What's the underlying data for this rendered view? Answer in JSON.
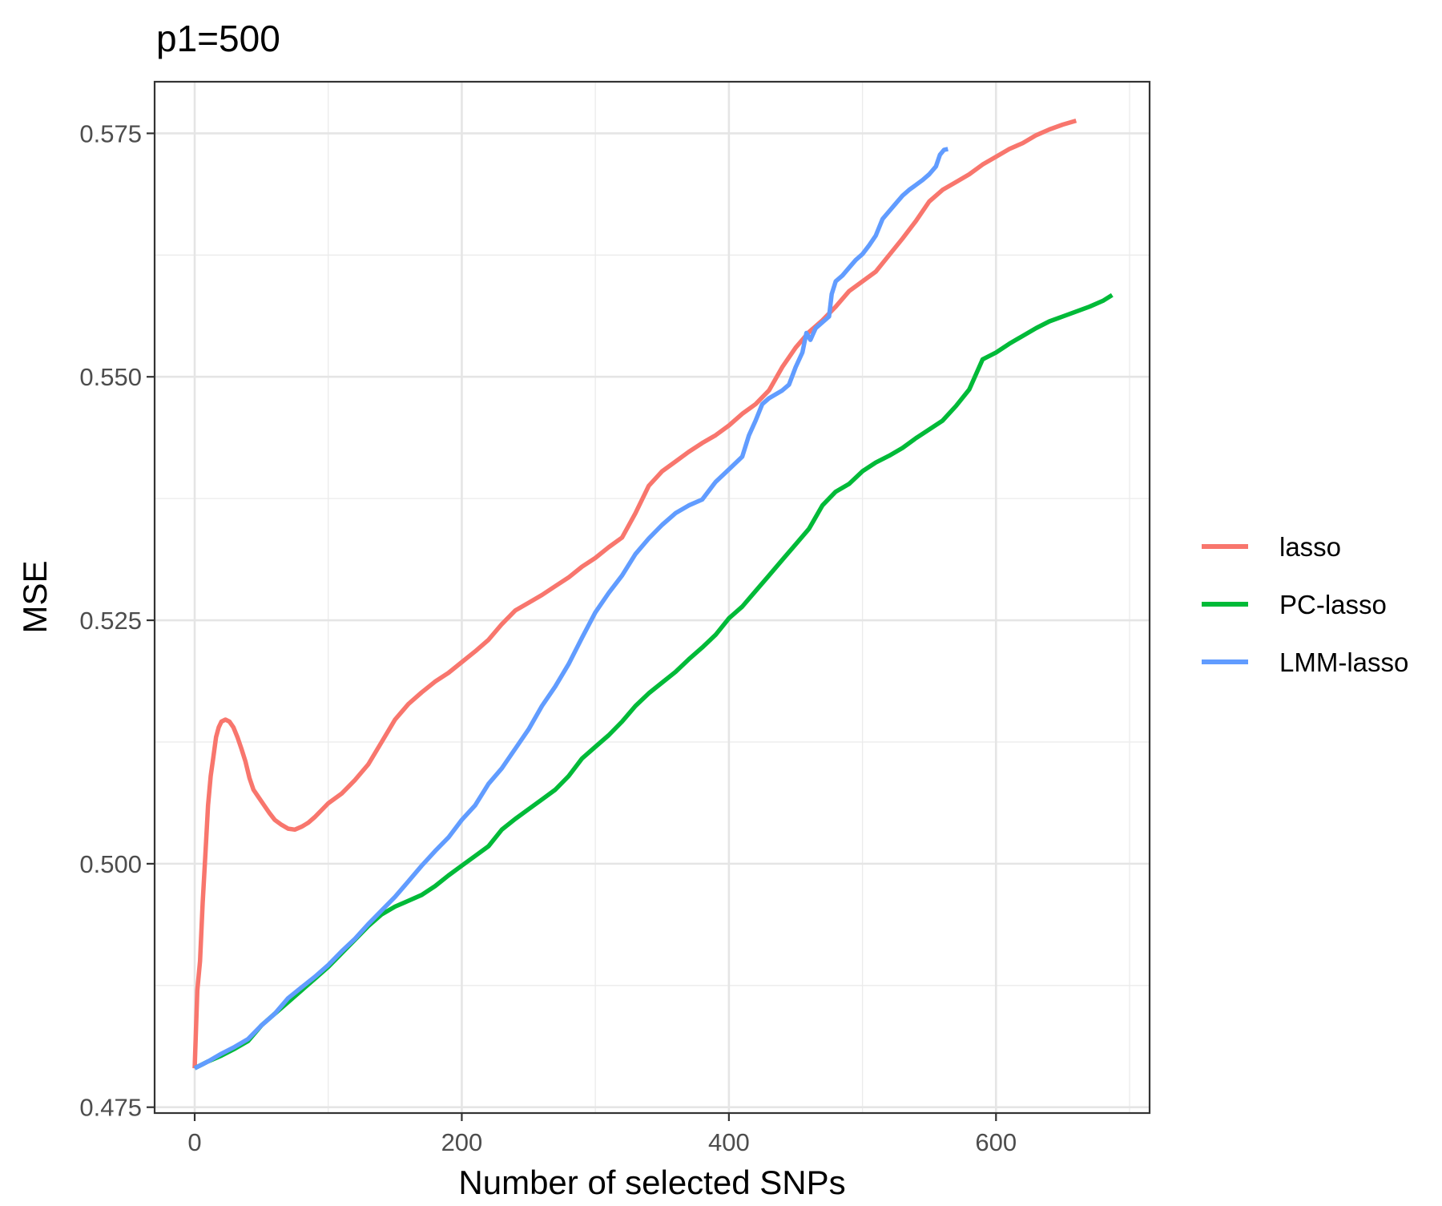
{
  "chart_data": {
    "type": "line",
    "title": "p1=500",
    "xlabel": "Number of selected SNPs",
    "ylabel": "MSE",
    "xlim": [
      -30,
      715
    ],
    "ylim": [
      0.4744,
      0.5803
    ],
    "x_ticks": [
      0,
      200,
      400,
      600
    ],
    "x_tick_labels": [
      "0",
      "200",
      "400",
      "600"
    ],
    "y_ticks": [
      0.475,
      0.5,
      0.525,
      0.55,
      0.575
    ],
    "y_tick_labels": [
      "0.475",
      "0.500",
      "0.525",
      "0.550",
      "0.575"
    ],
    "x_minor": [
      100,
      300,
      500,
      700
    ],
    "y_minor": [
      0.4875,
      0.5125,
      0.5375,
      0.5625
    ],
    "grid": true,
    "theme": "bw",
    "legend_position": "right",
    "series": [
      {
        "name": "lasso",
        "color": "#F8766D",
        "points": [
          [
            0,
            0.479
          ],
          [
            2,
            0.487
          ],
          [
            4,
            0.49
          ],
          [
            6,
            0.496
          ],
          [
            8,
            0.501
          ],
          [
            10,
            0.506
          ],
          [
            12,
            0.509
          ],
          [
            14,
            0.511
          ],
          [
            16,
            0.513
          ],
          [
            18,
            0.514
          ],
          [
            20,
            0.5146
          ],
          [
            23,
            0.5148
          ],
          [
            26,
            0.5146
          ],
          [
            29,
            0.514
          ],
          [
            32,
            0.513
          ],
          [
            35,
            0.5118
          ],
          [
            38,
            0.5105
          ],
          [
            41,
            0.5088
          ],
          [
            44,
            0.5076
          ],
          [
            48,
            0.5068
          ],
          [
            52,
            0.506
          ],
          [
            56,
            0.5052
          ],
          [
            60,
            0.5045
          ],
          [
            65,
            0.504
          ],
          [
            70,
            0.5036
          ],
          [
            75,
            0.5035
          ],
          [
            80,
            0.5038
          ],
          [
            85,
            0.5042
          ],
          [
            90,
            0.5048
          ],
          [
            95,
            0.5055
          ],
          [
            100,
            0.5062
          ],
          [
            110,
            0.5072
          ],
          [
            120,
            0.5086
          ],
          [
            130,
            0.5102
          ],
          [
            140,
            0.5125
          ],
          [
            150,
            0.5148
          ],
          [
            160,
            0.5164
          ],
          [
            170,
            0.5176
          ],
          [
            180,
            0.5187
          ],
          [
            190,
            0.5196
          ],
          [
            200,
            0.5207
          ],
          [
            210,
            0.5218
          ],
          [
            220,
            0.523
          ],
          [
            230,
            0.5246
          ],
          [
            240,
            0.526
          ],
          [
            250,
            0.5268
          ],
          [
            260,
            0.5276
          ],
          [
            270,
            0.5285
          ],
          [
            280,
            0.5294
          ],
          [
            290,
            0.5305
          ],
          [
            300,
            0.5314
          ],
          [
            310,
            0.5325
          ],
          [
            320,
            0.5335
          ],
          [
            330,
            0.536
          ],
          [
            340,
            0.5388
          ],
          [
            350,
            0.5403
          ],
          [
            360,
            0.5413
          ],
          [
            370,
            0.5423
          ],
          [
            380,
            0.5432
          ],
          [
            390,
            0.544
          ],
          [
            400,
            0.545
          ],
          [
            410,
            0.5462
          ],
          [
            420,
            0.5472
          ],
          [
            430,
            0.5486
          ],
          [
            440,
            0.551
          ],
          [
            450,
            0.553
          ],
          [
            460,
            0.5546
          ],
          [
            470,
            0.5558
          ],
          [
            480,
            0.5572
          ],
          [
            490,
            0.5588
          ],
          [
            500,
            0.5598
          ],
          [
            510,
            0.5608
          ],
          [
            520,
            0.5625
          ],
          [
            530,
            0.5642
          ],
          [
            540,
            0.566
          ],
          [
            550,
            0.568
          ],
          [
            560,
            0.5692
          ],
          [
            570,
            0.57
          ],
          [
            580,
            0.5708
          ],
          [
            590,
            0.5718
          ],
          [
            600,
            0.5726
          ],
          [
            610,
            0.5734
          ],
          [
            620,
            0.574
          ],
          [
            630,
            0.5748
          ],
          [
            640,
            0.5754
          ],
          [
            650,
            0.5759
          ],
          [
            660,
            0.5763
          ]
        ]
      },
      {
        "name": "PC-lasso",
        "color": "#00BA38",
        "points": [
          [
            0,
            0.479
          ],
          [
            10,
            0.4797
          ],
          [
            20,
            0.4803
          ],
          [
            30,
            0.481
          ],
          [
            40,
            0.4818
          ],
          [
            50,
            0.4834
          ],
          [
            60,
            0.4846
          ],
          [
            70,
            0.4858
          ],
          [
            80,
            0.487
          ],
          [
            90,
            0.4882
          ],
          [
            100,
            0.4894
          ],
          [
            110,
            0.4908
          ],
          [
            120,
            0.4922
          ],
          [
            130,
            0.4936
          ],
          [
            140,
            0.4948
          ],
          [
            150,
            0.4956
          ],
          [
            160,
            0.4962
          ],
          [
            170,
            0.4968
          ],
          [
            180,
            0.4977
          ],
          [
            190,
            0.4988
          ],
          [
            200,
            0.4998
          ],
          [
            210,
            0.5008
          ],
          [
            220,
            0.5018
          ],
          [
            230,
            0.5035
          ],
          [
            240,
            0.5046
          ],
          [
            250,
            0.5056
          ],
          [
            260,
            0.5066
          ],
          [
            270,
            0.5076
          ],
          [
            280,
            0.509
          ],
          [
            290,
            0.5108
          ],
          [
            300,
            0.512
          ],
          [
            310,
            0.5132
          ],
          [
            320,
            0.5146
          ],
          [
            330,
            0.5162
          ],
          [
            340,
            0.5175
          ],
          [
            350,
            0.5186
          ],
          [
            360,
            0.5197
          ],
          [
            370,
            0.521
          ],
          [
            380,
            0.5222
          ],
          [
            390,
            0.5235
          ],
          [
            400,
            0.5252
          ],
          [
            410,
            0.5264
          ],
          [
            420,
            0.528
          ],
          [
            430,
            0.5296
          ],
          [
            440,
            0.5312
          ],
          [
            450,
            0.5328
          ],
          [
            460,
            0.5344
          ],
          [
            470,
            0.5368
          ],
          [
            480,
            0.5382
          ],
          [
            490,
            0.539
          ],
          [
            500,
            0.5403
          ],
          [
            510,
            0.5412
          ],
          [
            520,
            0.5419
          ],
          [
            530,
            0.5427
          ],
          [
            540,
            0.5437
          ],
          [
            550,
            0.5446
          ],
          [
            560,
            0.5455
          ],
          [
            570,
            0.547
          ],
          [
            580,
            0.5487
          ],
          [
            590,
            0.5518
          ],
          [
            600,
            0.5525
          ],
          [
            610,
            0.5534
          ],
          [
            620,
            0.5542
          ],
          [
            630,
            0.555
          ],
          [
            640,
            0.5557
          ],
          [
            650,
            0.5562
          ],
          [
            660,
            0.5567
          ],
          [
            670,
            0.5572
          ],
          [
            680,
            0.5578
          ],
          [
            687,
            0.5584
          ]
        ]
      },
      {
        "name": "LMM-lasso",
        "color": "#619CFF",
        "points": [
          [
            0,
            0.479
          ],
          [
            10,
            0.4797
          ],
          [
            20,
            0.4805
          ],
          [
            30,
            0.4812
          ],
          [
            40,
            0.482
          ],
          [
            50,
            0.4834
          ],
          [
            60,
            0.4846
          ],
          [
            70,
            0.4862
          ],
          [
            80,
            0.4873
          ],
          [
            90,
            0.4884
          ],
          [
            100,
            0.4896
          ],
          [
            110,
            0.491
          ],
          [
            120,
            0.4923
          ],
          [
            130,
            0.4938
          ],
          [
            140,
            0.4952
          ],
          [
            150,
            0.4966
          ],
          [
            160,
            0.4982
          ],
          [
            170,
            0.4998
          ],
          [
            180,
            0.5013
          ],
          [
            190,
            0.5027
          ],
          [
            200,
            0.5045
          ],
          [
            210,
            0.506
          ],
          [
            220,
            0.5082
          ],
          [
            230,
            0.5098
          ],
          [
            240,
            0.5118
          ],
          [
            250,
            0.5138
          ],
          [
            260,
            0.5162
          ],
          [
            270,
            0.5182
          ],
          [
            280,
            0.5205
          ],
          [
            290,
            0.5232
          ],
          [
            300,
            0.5258
          ],
          [
            310,
            0.5278
          ],
          [
            320,
            0.5296
          ],
          [
            330,
            0.5318
          ],
          [
            340,
            0.5334
          ],
          [
            350,
            0.5348
          ],
          [
            360,
            0.536
          ],
          [
            370,
            0.5368
          ],
          [
            380,
            0.5374
          ],
          [
            390,
            0.5392
          ],
          [
            400,
            0.5405
          ],
          [
            410,
            0.5418
          ],
          [
            415,
            0.544
          ],
          [
            420,
            0.5455
          ],
          [
            425,
            0.5472
          ],
          [
            430,
            0.5478
          ],
          [
            440,
            0.5486
          ],
          [
            445,
            0.5492
          ],
          [
            450,
            0.551
          ],
          [
            455,
            0.5525
          ],
          [
            458,
            0.5545
          ],
          [
            461,
            0.5538
          ],
          [
            465,
            0.555
          ],
          [
            470,
            0.5556
          ],
          [
            475,
            0.5562
          ],
          [
            477,
            0.5585
          ],
          [
            480,
            0.5598
          ],
          [
            485,
            0.5604
          ],
          [
            490,
            0.5612
          ],
          [
            495,
            0.562
          ],
          [
            500,
            0.5626
          ],
          [
            505,
            0.5635
          ],
          [
            510,
            0.5645
          ],
          [
            515,
            0.5662
          ],
          [
            520,
            0.567
          ],
          [
            525,
            0.5678
          ],
          [
            530,
            0.5686
          ],
          [
            535,
            0.5692
          ],
          [
            540,
            0.5697
          ],
          [
            545,
            0.5702
          ],
          [
            550,
            0.5708
          ],
          [
            555,
            0.5716
          ],
          [
            558,
            0.5728
          ],
          [
            561,
            0.5733
          ],
          [
            564,
            0.5734
          ]
        ]
      }
    ]
  }
}
